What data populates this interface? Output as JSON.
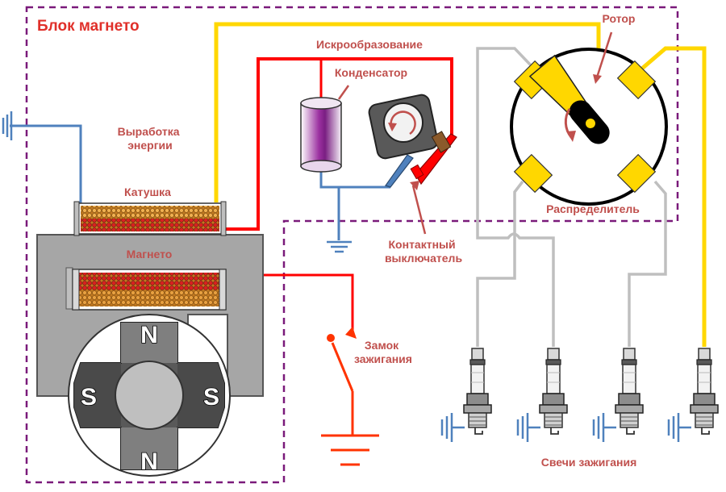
{
  "diagram": {
    "title": "Блок магнето",
    "labels": {
      "rotor": "Ротор",
      "spark_generation": "Искрообразование",
      "condenser": "Конденсатор",
      "energy_generation": "Выработка энергии",
      "coil": "Катушка",
      "magneto": "Магнето",
      "contact_breaker": "Контактный выключатель",
      "distributor": "Распределитель",
      "ignition_switch": "Замок зажигания",
      "spark_plugs": "Свечи зажигания"
    },
    "poles": {
      "north": "N",
      "south": "S"
    },
    "icons": [
      "ground-icon",
      "rotation-arrow-icon",
      "spark-plug-icon",
      "magnet-icon",
      "capacitor-icon"
    ],
    "colors": {
      "title_red": "#e0302a",
      "label_red": "#c0504d",
      "frame_purple": "#7a1a7a",
      "wire_yellow": "#ffd700",
      "wire_red": "#ff0000",
      "wire_blue": "#4f81bd",
      "wire_gray": "#bfbfbf",
      "switch_orange": "#ff3300",
      "core_gray": "#a6a6a6",
      "copper": "#d08a30"
    }
  }
}
